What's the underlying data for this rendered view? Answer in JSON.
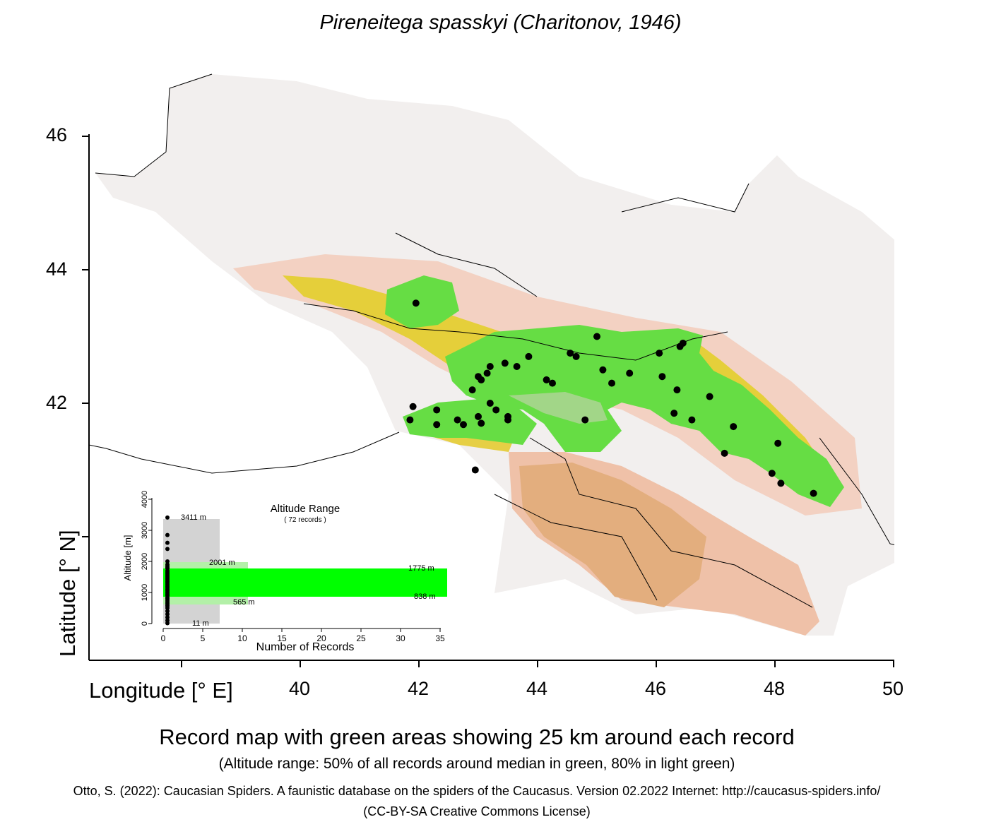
{
  "title": "Pireneitega spasskyi (Charitonov, 1946)",
  "axes": {
    "ylabel": "Latitude [° N]",
    "xlabel": "Longitude [° E]",
    "y_ticks": [
      "46",
      "44",
      "42"
    ],
    "x_ticks": [
      "40",
      "42",
      "44",
      "46",
      "48",
      "50"
    ]
  },
  "inset": {
    "title": "Altitude Range",
    "subtitle": "( 72 records )",
    "ylabel": "Altitude [m]",
    "xlabel": "Number of Records",
    "y_ticks": [
      "0",
      "1000",
      "2000",
      "3000",
      "4000"
    ],
    "x_ticks": [
      "0",
      "5",
      "10",
      "15",
      "20",
      "25",
      "30",
      "35"
    ],
    "labels": {
      "max": "3411  m",
      "p80_high": "2001  m",
      "p50_high": "1775  m",
      "p50_low": "838  m",
      "p80_low": "565  m",
      "min": "11  m"
    }
  },
  "caption": "Record map with green areas showing 25 km around each record",
  "subcaption": "(Altitude range: 50% of all records around median in green, 80% in light green)",
  "credit": "Otto, S. (2022): Caucasian Spiders. A faunistic database on the spiders of the Caucasus. Version 02.2022 Internet: http://caucasus-spiders.info/",
  "license": "(CC-BY-SA Creative Commons License)",
  "colors": {
    "record": "#000000",
    "buffer": "#66dd44",
    "altitude_50": "#00ff00",
    "altitude_80": "#b3f0a8",
    "altitude_full": "#d3d3d3",
    "lowland": "#f2efee",
    "midland": "#e8b28a",
    "highland": "#ead53a"
  },
  "chart_data": {
    "type": "scatter",
    "records_lon_lat": [
      [
        41.95,
        43.5
      ],
      [
        42.75,
        41.68
      ],
      [
        43.0,
        41.8
      ],
      [
        43.3,
        41.9
      ],
      [
        43.2,
        42.0
      ],
      [
        42.9,
        42.2
      ],
      [
        43.0,
        42.4
      ],
      [
        43.05,
        42.35
      ],
      [
        43.15,
        42.45
      ],
      [
        43.2,
        42.55
      ],
      [
        43.45,
        42.6
      ],
      [
        43.65,
        42.55
      ],
      [
        43.85,
        42.7
      ],
      [
        44.15,
        42.35
      ],
      [
        44.25,
        42.3
      ],
      [
        44.55,
        42.75
      ],
      [
        44.65,
        42.7
      ],
      [
        45.0,
        43.0
      ],
      [
        45.1,
        42.5
      ],
      [
        45.25,
        42.3
      ],
      [
        45.55,
        42.45
      ],
      [
        46.05,
        42.75
      ],
      [
        46.1,
        42.4
      ],
      [
        46.4,
        42.85
      ],
      [
        46.45,
        42.9
      ],
      [
        46.35,
        42.2
      ],
      [
        46.3,
        41.85
      ],
      [
        46.6,
        41.75
      ],
      [
        46.9,
        42.1
      ],
      [
        47.3,
        41.65
      ],
      [
        47.15,
        41.25
      ],
      [
        47.95,
        40.95
      ],
      [
        48.05,
        41.4
      ],
      [
        48.1,
        40.8
      ],
      [
        48.65,
        40.65
      ],
      [
        41.9,
        41.95
      ],
      [
        41.85,
        41.75
      ],
      [
        42.3,
        41.9
      ],
      [
        42.3,
        41.68
      ],
      [
        42.65,
        41.75
      ],
      [
        43.05,
        41.7
      ],
      [
        43.5,
        41.75
      ],
      [
        43.5,
        41.8
      ],
      [
        44.8,
        41.75
      ],
      [
        42.95,
        41.0
      ]
    ],
    "altitude_m": {
      "max": 3411,
      "p80_high": 2001,
      "p50_high": 1775,
      "p50_low": 838,
      "p80_low": 565,
      "min": 11
    },
    "record_count": 72,
    "xlim": [
      37.5,
      50
    ],
    "ylim": [
      39.0,
      46.8
    ],
    "grid": false
  }
}
